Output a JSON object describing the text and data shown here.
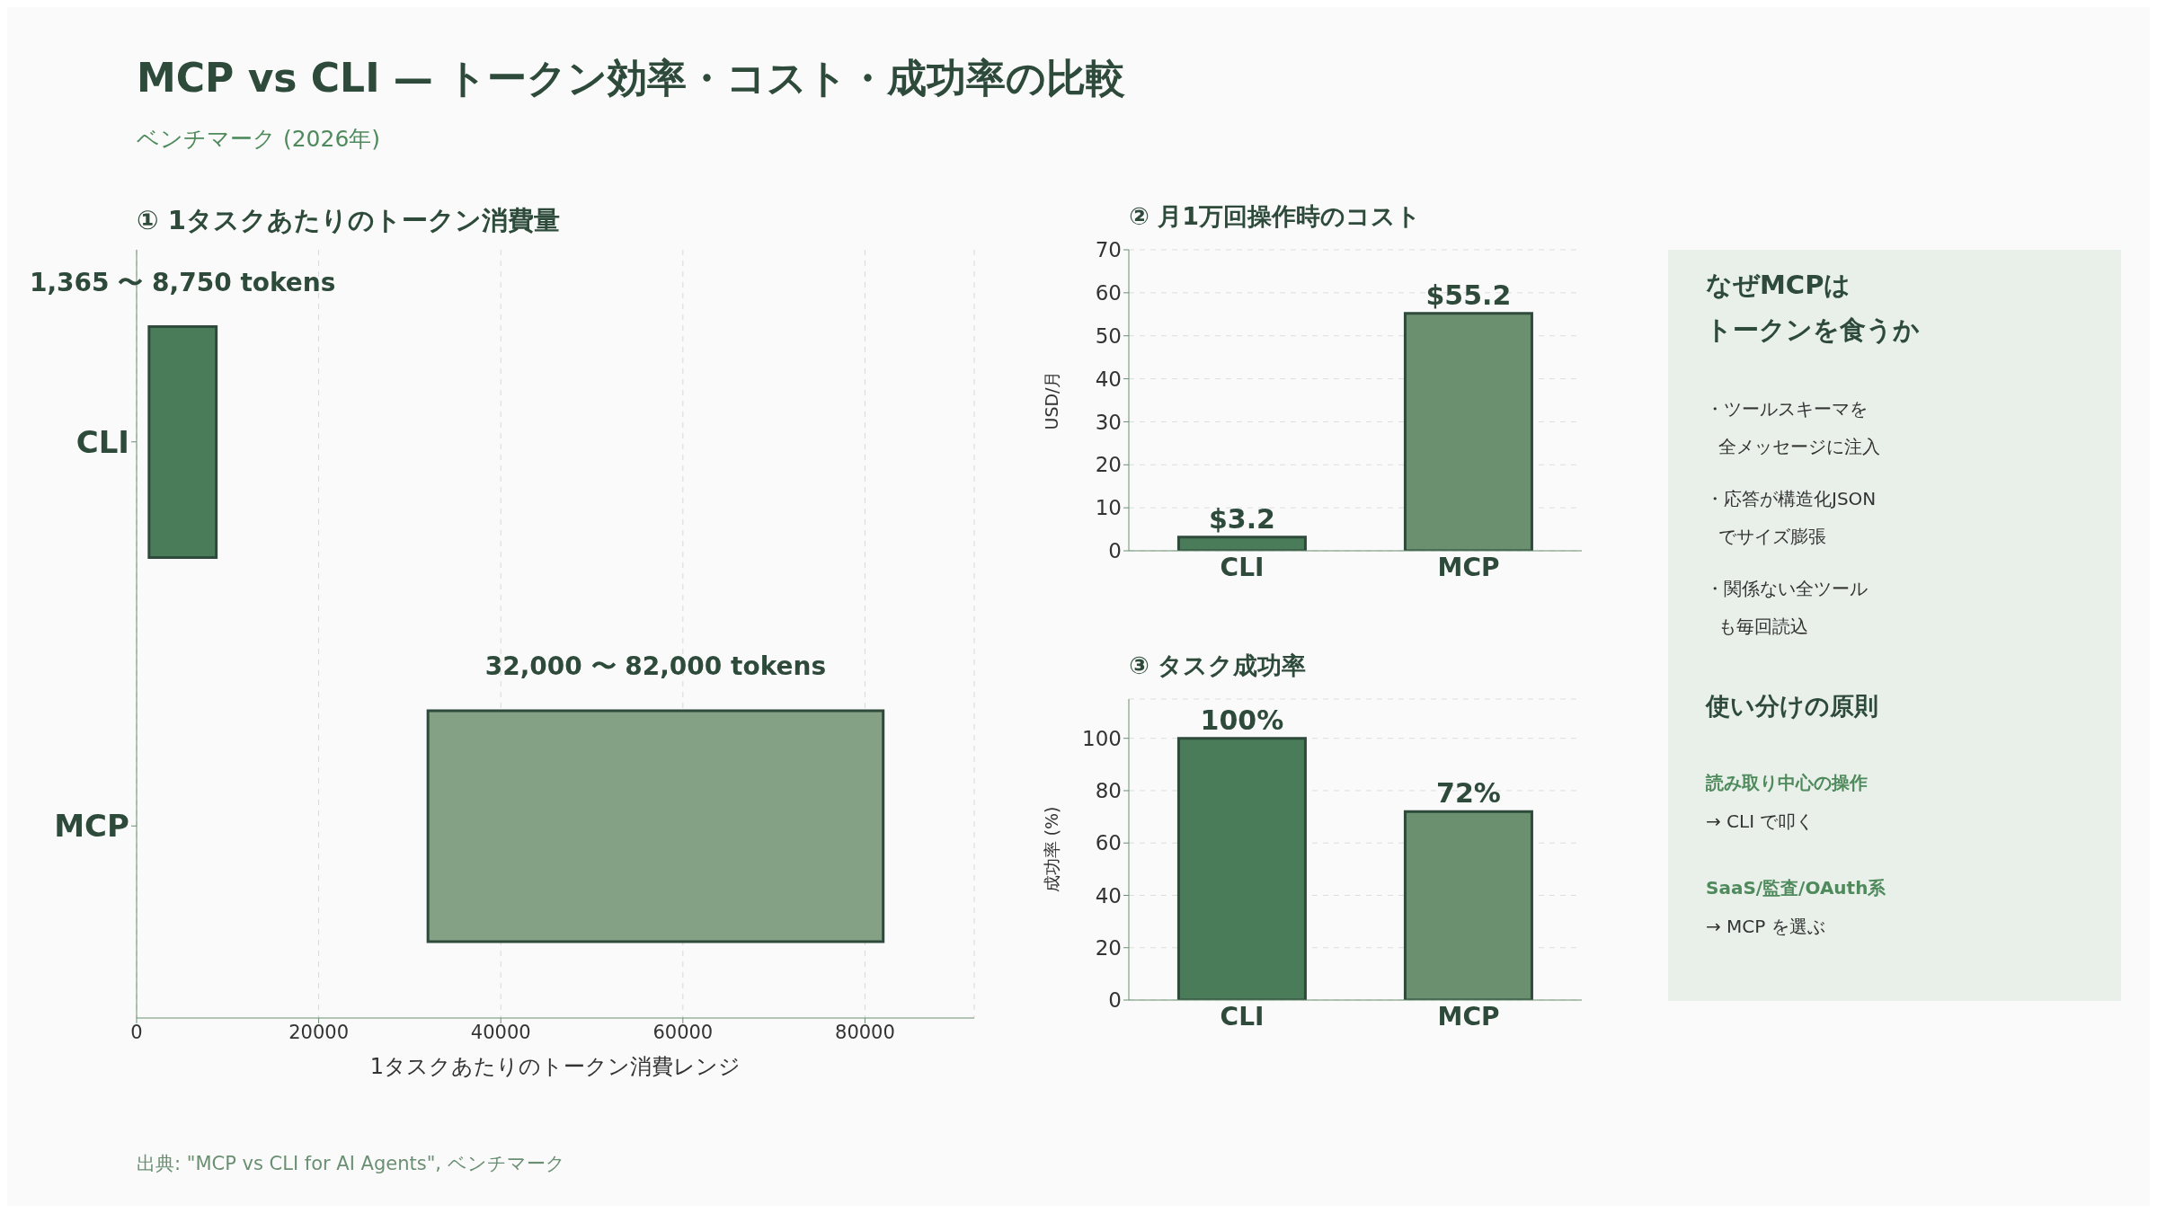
{
  "chart_data": [
    {
      "type": "other",
      "title": "MCP vs CLI — トークン効率・コスト・成功率の比較",
      "subtitle": "ベンチマーク (2026年)",
      "annotations": [
        "出典: \"MCP vs CLI for AI Agents\", ベンチマーク"
      ]
    },
    {
      "type": "bar",
      "orientation": "horizontal",
      "title": "① 1タスクあたりのトークン消費量",
      "xlabel": "1タスクあたりのトークン消費レンジ",
      "categories": [
        "CLI",
        "MCP"
      ],
      "base": [
        1365,
        32000
      ],
      "values": [
        7385,
        50000
      ],
      "colors": [
        "#4a7c59",
        "#84a085"
      ],
      "annotations": [
        "1,365 〜 8,750 tokens",
        "32,000 〜 82,000 tokens"
      ],
      "xlim": [
        0,
        92000
      ],
      "xticks": [
        0,
        20000,
        40000,
        60000,
        80000
      ],
      "grid": "x"
    },
    {
      "type": "bar",
      "title": "② 月1万回操作時のコスト",
      "ylabel": "USD/月",
      "categories": [
        "CLI",
        "MCP"
      ],
      "values": [
        3.2,
        55.2
      ],
      "colors": [
        "#4a7c59",
        "#6b9070"
      ],
      "value_labels": [
        "$3.2",
        "$55.2"
      ],
      "ylim": [
        0,
        70
      ],
      "yticks": [
        0,
        10,
        20,
        30,
        40,
        50,
        60,
        70
      ],
      "grid": "y"
    },
    {
      "type": "bar",
      "title": "③ タスク成功率",
      "ylabel": "成功率 (%)",
      "categories": [
        "CLI",
        "MCP"
      ],
      "values": [
        100,
        72
      ],
      "colors": [
        "#4a7c59",
        "#6b9070"
      ],
      "value_labels": [
        "100%",
        "72%"
      ],
      "ylim": [
        0,
        115
      ],
      "yticks": [
        0,
        20,
        40,
        60,
        80,
        100
      ],
      "grid": "y"
    },
    {
      "type": "other",
      "title": "なぜMCPは",
      "subtitle": "トークンを食うか",
      "annotations": [
        "・ツールスキーマを",
        "全メッセージに注入",
        "・応答が構造化JSON",
        "でサイズ膨張",
        "・関係ない全ツール",
        "も毎回読込",
        "使い分けの原則",
        "読み取り中心の操作",
        "→ CLI で叩く",
        "SaaS/監査/OAuth系",
        "→ MCP を選ぶ"
      ]
    }
  ]
}
